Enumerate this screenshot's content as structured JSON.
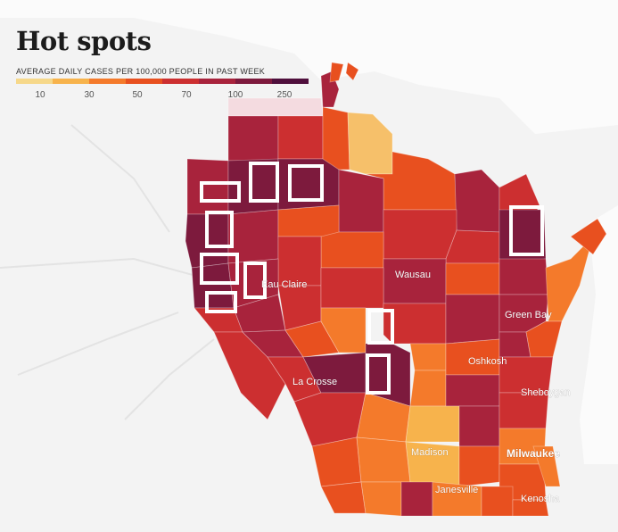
{
  "title": "Hot spots",
  "legend": {
    "caption": "AVERAGE DAILY CASES PER 100,000 PEOPLE IN PAST WEEK",
    "ticks": [
      "10",
      "30",
      "50",
      "70",
      "100",
      "250"
    ],
    "colors": [
      "#f6d88a",
      "#f7b34c",
      "#f47a2b",
      "#e8501f",
      "#cc2f30",
      "#a8233c",
      "#7d1a3d",
      "#4f0f3c"
    ]
  },
  "city_labels": {
    "eau_claire": "Eau Claire",
    "wausau": "Wausau",
    "green_bay": "Green Bay",
    "la_crosse": "La Crosse",
    "oshkosh": "Oshkosh",
    "sheboygan": "Sheboygan",
    "madison": "Madison",
    "milwaukee": "Milwaukee",
    "janesville": "Janesville",
    "kenosha": "Kenosha"
  },
  "highlighted_counties": 10,
  "colors": {
    "background_land": "#f1f1f1",
    "lake": "#ffffff"
  }
}
